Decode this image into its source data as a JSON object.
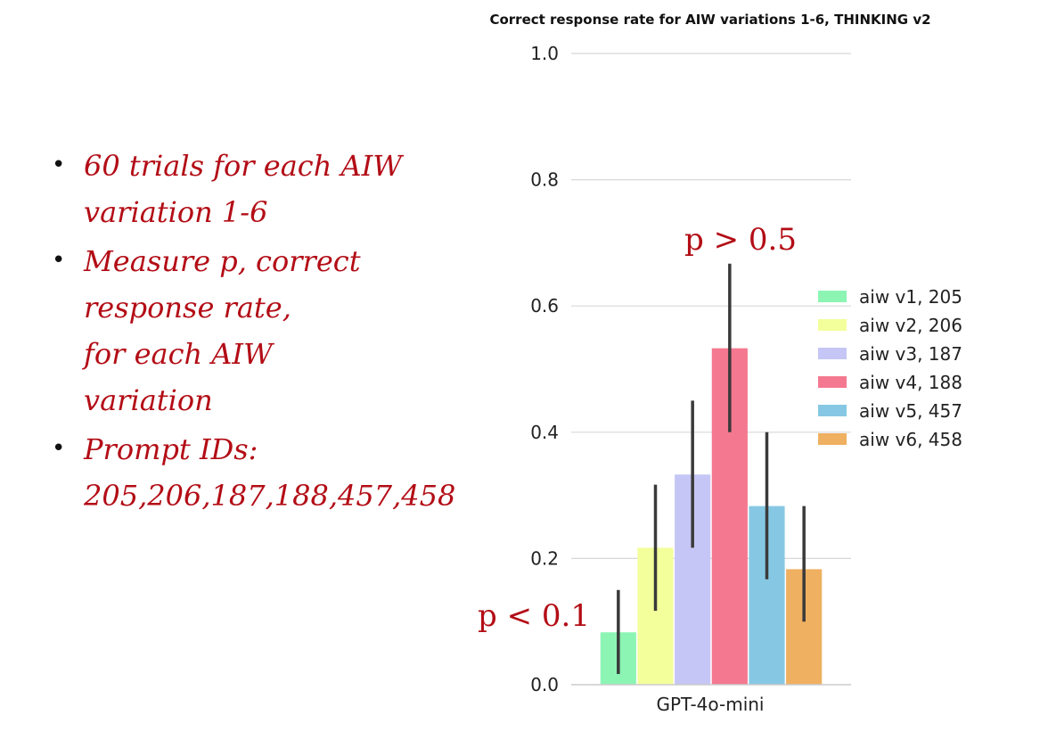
{
  "bullets": [
    "60 trials for each AIW\nvariation 1-6",
    "Measure p, correct\nresponse rate,\nfor each AIW\nvariation",
    "Prompt IDs:\n205,206,187,188,457,458"
  ],
  "annotations": {
    "high": "p > 0.5",
    "low": "p < 0.1"
  },
  "chart_data": {
    "type": "bar",
    "title": "Correct response rate for AIW variations 1-6, THINKING v2",
    "xlabel": "",
    "ylabel": "",
    "categories": [
      "GPT-4o-mini"
    ],
    "ylim": [
      0,
      1.0
    ],
    "yticks": [
      "0.0",
      "0.2",
      "0.4",
      "0.6",
      "0.8",
      "1.0"
    ],
    "grid": true,
    "legend_position": "right",
    "series": [
      {
        "name": "aiw v1, 205",
        "color": "#8cf5b4",
        "values": [
          0.083
        ],
        "err_low": [
          0.017
        ],
        "err_high": [
          0.15
        ]
      },
      {
        "name": "aiw v2, 206",
        "color": "#f3ff9b",
        "values": [
          0.217
        ],
        "err_low": [
          0.117
        ],
        "err_high": [
          0.317
        ]
      },
      {
        "name": "aiw v3, 187",
        "color": "#c5c6f5",
        "values": [
          0.333
        ],
        "err_low": [
          0.217
        ],
        "err_high": [
          0.45
        ]
      },
      {
        "name": "aiw v4, 188",
        "color": "#f47890",
        "values": [
          0.533
        ],
        "err_low": [
          0.4
        ],
        "err_high": [
          0.667
        ]
      },
      {
        "name": "aiw v5, 457",
        "color": "#86c8e3",
        "values": [
          0.283
        ],
        "err_low": [
          0.167
        ],
        "err_high": [
          0.4
        ]
      },
      {
        "name": "aiw v6, 458",
        "color": "#efb061",
        "values": [
          0.183
        ],
        "err_low": [
          0.1
        ],
        "err_high": [
          0.283
        ]
      }
    ]
  }
}
